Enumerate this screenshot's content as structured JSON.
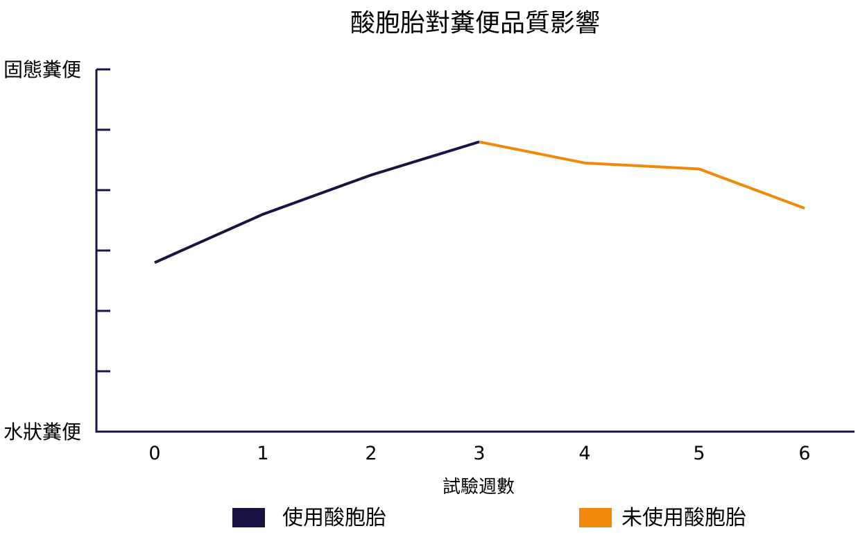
{
  "chart_data": {
    "type": "line",
    "title": "酸胞胎對糞便品質影響",
    "xlabel": "試驗週數",
    "y_top_label": "固態糞便",
    "y_bottom_label": "水狀糞便",
    "x": [
      0,
      1,
      2,
      3,
      4,
      5,
      6
    ],
    "ylim": [
      0,
      6
    ],
    "series": [
      {
        "name": "使用酸胞胎",
        "color": "#1d1244",
        "x": [
          0,
          1,
          2,
          3
        ],
        "values": [
          2.8,
          3.6,
          4.25,
          4.8
        ]
      },
      {
        "name": "未使用酸胞胎",
        "color": "#f0890a",
        "x": [
          3,
          4,
          5,
          6
        ],
        "values": [
          4.8,
          4.45,
          4.35,
          3.7
        ]
      }
    ],
    "legend_position": "bottom",
    "grid": false,
    "axis_color": "#1d1244"
  }
}
